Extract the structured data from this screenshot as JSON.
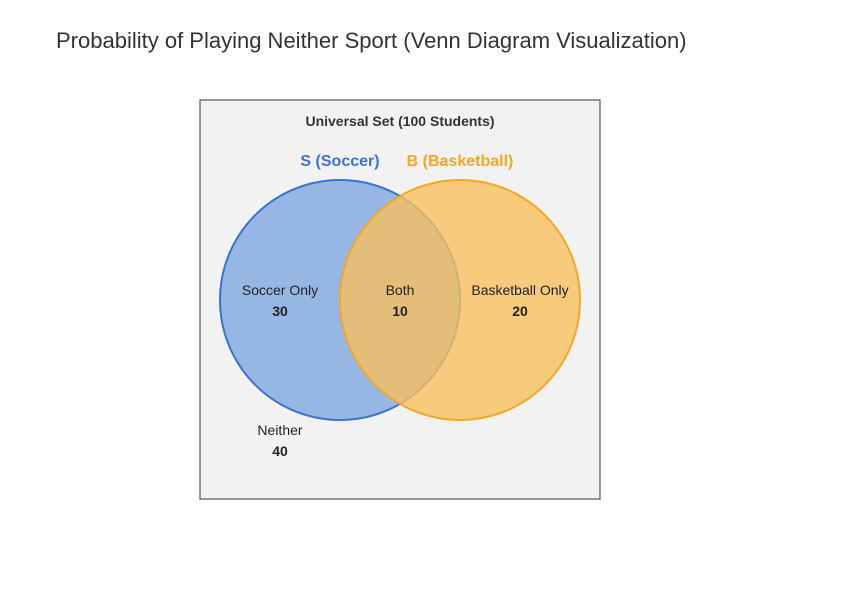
{
  "title": "Probability of Playing Neither Sport (Venn Diagram Visualization)",
  "universal_label": "Universal Set (100 Students)",
  "sets": {
    "soccer": {
      "label": "S (Soccer)",
      "color": "#3a73d1",
      "fill": "#7ea6e0"
    },
    "basketball": {
      "label": "B (Basketball)",
      "color": "#f5a623",
      "fill": "#f7c15d"
    }
  },
  "regions": {
    "soccer_only": {
      "label": "Soccer Only",
      "value": "30"
    },
    "both": {
      "label": "Both",
      "value": "10"
    },
    "basketball_only": {
      "label": "Basketball Only",
      "value": "20"
    },
    "neither": {
      "label": "Neither",
      "value": "40"
    }
  },
  "colors": {
    "universe_fill": "#f2f2f2",
    "universe_stroke": "#555555",
    "text": "#222222"
  }
}
